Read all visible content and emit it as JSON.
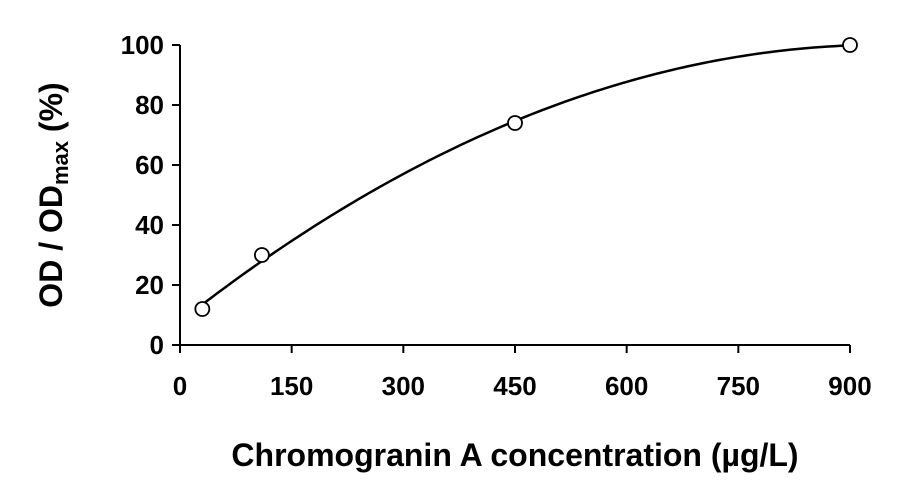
{
  "chart_data": {
    "type": "scatter",
    "xlabel": "Chromogranin A concentration (µg/L)",
    "ylabel": {
      "main": "OD / OD",
      "sub": "max",
      "suffix": " (%)"
    },
    "xlim": [
      0,
      900
    ],
    "ylim": [
      0,
      100
    ],
    "xticks": [
      0,
      150,
      300,
      450,
      600,
      750,
      900
    ],
    "yticks": [
      0,
      20,
      40,
      60,
      80,
      100
    ],
    "grid": false,
    "series": [
      {
        "points": [
          {
            "x": 30,
            "y": 12
          },
          {
            "x": 110,
            "y": 30
          },
          {
            "x": 450,
            "y": 74
          },
          {
            "x": 900,
            "y": 100
          }
        ],
        "marker": "open-circle",
        "trendline": "polynomial"
      }
    ],
    "colors": {
      "line": "#000000",
      "marker_fill": "#ffffff"
    }
  }
}
